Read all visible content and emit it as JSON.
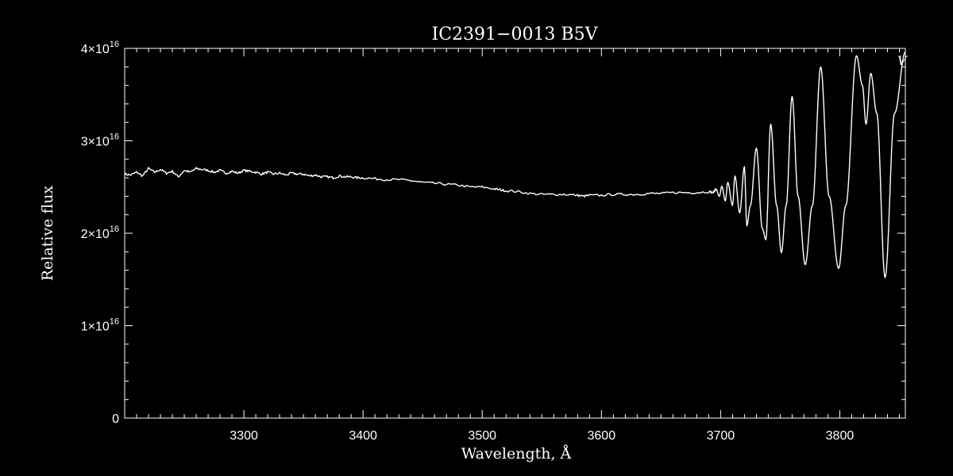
{
  "chart_data": {
    "type": "line",
    "title": "IC2391−0013   B5V",
    "xlabel": "Wavelength, Å",
    "ylabel": "Relative flux",
    "xlim": [
      3200,
      3855
    ],
    "ylim": [
      0,
      4e+16
    ],
    "x_ticks": [
      3300,
      3400,
      3500,
      3600,
      3700,
      3800
    ],
    "y_ticks": [
      {
        "value": 0,
        "mantissa": "0",
        "exponent": ""
      },
      {
        "value": 1e+16,
        "mantissa": "1×10",
        "exponent": "16"
      },
      {
        "value": 2e+16,
        "mantissa": "2×10",
        "exponent": "16"
      },
      {
        "value": 3e+16,
        "mantissa": "3×10",
        "exponent": "16"
      },
      {
        "value": 4e+16,
        "mantissa": "4×10",
        "exponent": "16"
      }
    ],
    "corner_marker": "V",
    "line_color": "#ffffff",
    "background": "#000000",
    "grid": false,
    "series": [
      {
        "x": [
          3200,
          3205,
          3210,
          3215,
          3220,
          3225,
          3230,
          3235,
          3240,
          3245,
          3250,
          3255,
          3260,
          3265,
          3270,
          3275,
          3280,
          3285,
          3290,
          3295,
          3300,
          3305,
          3310,
          3315,
          3320,
          3325,
          3330,
          3335,
          3340,
          3345,
          3350,
          3355,
          3360,
          3365,
          3370,
          3375,
          3380,
          3385,
          3390,
          3395,
          3400,
          3410,
          3420,
          3430,
          3440,
          3450,
          3460,
          3470,
          3480,
          3490,
          3500,
          3510,
          3515,
          3520,
          3530,
          3540,
          3550,
          3560,
          3570,
          3580,
          3585,
          3590,
          3600,
          3610,
          3620,
          3630,
          3640,
          3650,
          3660,
          3670,
          3680,
          3690,
          3694,
          3696,
          3699,
          3701,
          3704,
          3706,
          3710,
          3712,
          3716,
          3720,
          3722,
          3725,
          3730,
          3735,
          3738,
          3742,
          3747,
          3751,
          3755,
          3760,
          3765,
          3771,
          3777,
          3784,
          3791,
          3799,
          3805,
          3814,
          3819,
          3822,
          3826,
          3831,
          3838,
          3846,
          3855
        ],
        "y": [
          2.64e+16,
          2.63e+16,
          2.66e+16,
          2.62e+16,
          2.7e+16,
          2.66e+16,
          2.69e+16,
          2.65e+16,
          2.67e+16,
          2.61e+16,
          2.68e+16,
          2.66e+16,
          2.7e+16,
          2.69e+16,
          2.68e+16,
          2.66e+16,
          2.68e+16,
          2.65e+16,
          2.67e+16,
          2.65e+16,
          2.68e+16,
          2.67e+16,
          2.66e+16,
          2.64e+16,
          2.66e+16,
          2.64e+16,
          2.65e+16,
          2.63e+16,
          2.65e+16,
          2.64e+16,
          2.64e+16,
          2.62e+16,
          2.63e+16,
          2.61e+16,
          2.61e+16,
          2.6e+16,
          2.62e+16,
          2.61e+16,
          2.61e+16,
          2.6e+16,
          2.6e+16,
          2.59e+16,
          2.58e+16,
          2.58e+16,
          2.57e+16,
          2.55e+16,
          2.54e+16,
          2.53e+16,
          2.52e+16,
          2.5e+16,
          2.5e+16,
          2.48e+16,
          2.47e+16,
          2.46e+16,
          2.45e+16,
          2.43e+16,
          2.42e+16,
          2.42e+16,
          2.42e+16,
          2.41e+16,
          2.4e+16,
          2.41e+16,
          2.41e+16,
          2.42e+16,
          2.42e+16,
          2.42e+16,
          2.43e+16,
          2.43e+16,
          2.44e+16,
          2.44e+16,
          2.44e+16,
          2.45e+16,
          2.44e+16,
          2.48e+16,
          2.4e+16,
          2.51e+16,
          2.35e+16,
          2.55e+16,
          2.3e+16,
          2.62e+16,
          2.22e+16,
          2.72e+16,
          2.08e+16,
          2.3e+16,
          2.92e+16,
          2.05e+16,
          1.93e+16,
          3.18e+16,
          2.3e+16,
          1.79e+16,
          2.3e+16,
          3.48e+16,
          2.4e+16,
          1.66e+16,
          2.3e+16,
          3.8e+16,
          2.4e+16,
          1.62e+16,
          2.3e+16,
          3.92e+16,
          3.6e+16,
          3.18e+16,
          3.73e+16,
          3.3e+16,
          1.52e+16,
          3.3e+16,
          3.96e+16
        ]
      }
    ]
  }
}
